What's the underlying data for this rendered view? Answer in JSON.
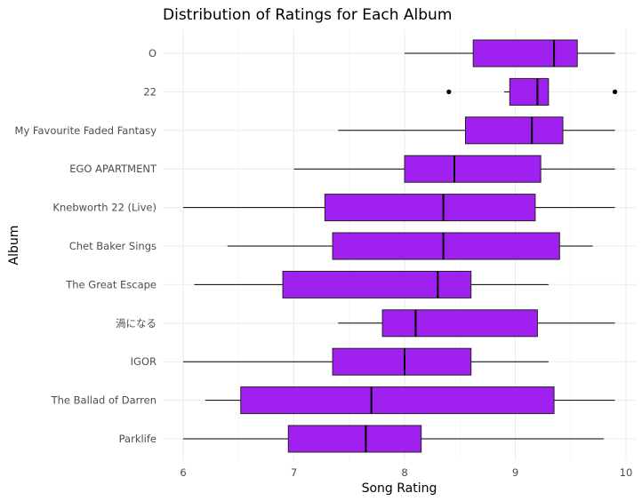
{
  "chart_data": {
    "type": "boxplot",
    "title": "Distribution of Ratings for Each Album",
    "xlabel": "Song Rating",
    "ylabel": "Album",
    "xlim": [
      5.9,
      10.05
    ],
    "x_ticks": [
      6,
      7,
      8,
      9,
      10
    ],
    "grid": true,
    "orientation": "horizontal",
    "box_color": "#A020F0",
    "categories": [
      "O",
      "22",
      "My Favourite Faded Fantasy",
      "EGO APARTMENT",
      "Knebworth 22 (Live)",
      "Chet Baker Sings",
      "The Great Escape",
      "渦になる",
      "IGOR",
      "The Ballad of Darren",
      "Parklife"
    ],
    "boxes": [
      {
        "album": "O",
        "min": 8.0,
        "q1": 8.62,
        "median": 9.35,
        "q3": 9.56,
        "max": 9.9,
        "outliers": []
      },
      {
        "album": "22",
        "min": 8.9,
        "q1": 8.95,
        "median": 9.2,
        "q3": 9.3,
        "max": 9.3,
        "outliers": [
          8.4,
          9.9
        ]
      },
      {
        "album": "My Favourite Faded Fantasy",
        "min": 7.4,
        "q1": 8.55,
        "median": 9.15,
        "q3": 9.43,
        "max": 9.9,
        "outliers": []
      },
      {
        "album": "EGO APARTMENT",
        "min": 7.0,
        "q1": 8.0,
        "median": 8.45,
        "q3": 9.23,
        "max": 9.9,
        "outliers": []
      },
      {
        "album": "Knebworth 22 (Live)",
        "min": 6.0,
        "q1": 7.28,
        "median": 8.35,
        "q3": 9.18,
        "max": 9.9,
        "outliers": []
      },
      {
        "album": "Chet Baker Sings",
        "min": 6.4,
        "q1": 7.35,
        "median": 8.35,
        "q3": 9.4,
        "max": 9.7,
        "outliers": []
      },
      {
        "album": "The Great Escape",
        "min": 6.1,
        "q1": 6.9,
        "median": 8.3,
        "q3": 8.6,
        "max": 9.3,
        "outliers": []
      },
      {
        "album": "渦になる",
        "min": 7.4,
        "q1": 7.8,
        "median": 8.1,
        "q3": 9.2,
        "max": 9.9,
        "outliers": []
      },
      {
        "album": "IGOR",
        "min": 6.0,
        "q1": 7.35,
        "median": 8.0,
        "q3": 8.6,
        "max": 9.3,
        "outliers": []
      },
      {
        "album": "The Ballad of Darren",
        "min": 6.2,
        "q1": 6.52,
        "median": 7.7,
        "q3": 9.35,
        "max": 9.9,
        "outliers": []
      },
      {
        "album": "Parklife",
        "min": 6.0,
        "q1": 6.95,
        "median": 7.65,
        "q3": 8.15,
        "max": 9.8,
        "outliers": []
      }
    ]
  }
}
